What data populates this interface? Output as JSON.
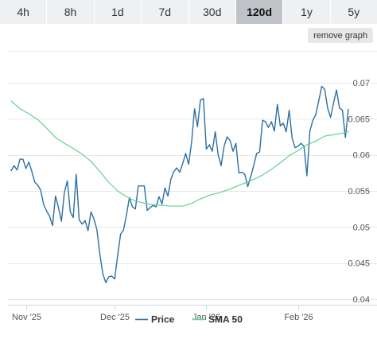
{
  "range_tabs": [
    {
      "label": "4h",
      "active": false
    },
    {
      "label": "8h",
      "active": false
    },
    {
      "label": "1d",
      "active": false
    },
    {
      "label": "7d",
      "active": false
    },
    {
      "label": "30d",
      "active": false
    },
    {
      "label": "120d",
      "active": true
    },
    {
      "label": "1y",
      "active": false
    },
    {
      "label": "5y",
      "active": false
    }
  ],
  "remove_graph_label": "remove graph",
  "colors": {
    "price": "#2d6fa3",
    "sma": "#5fd38d",
    "active_tab": "#bfc3c7",
    "tab": "#eef0f2"
  },
  "chart_data": {
    "type": "line",
    "y_axis_position": "right",
    "ylim": [
      0.0395,
      0.0725
    ],
    "y_ticks": [
      {
        "value": 0.07,
        "label": "0.07"
      },
      {
        "value": 0.065,
        "label": "0.065"
      },
      {
        "value": 0.06,
        "label": "0.06"
      },
      {
        "value": 0.055,
        "label": "0.055"
      },
      {
        "value": 0.05,
        "label": "0.05"
      },
      {
        "value": 0.045,
        "label": "0.045"
      },
      {
        "value": 0.04,
        "label": "0.04"
      }
    ],
    "x_start": "2025-10-27",
    "x_end": "2026-02-25",
    "x_ticks": [
      {
        "date": "2025-11-01",
        "label": "Nov '25"
      },
      {
        "date": "2025-12-01",
        "label": "Dec '25"
      },
      {
        "date": "2026-01-01",
        "label": "Jan '26"
      },
      {
        "date": "2026-02-01",
        "label": "Feb '26"
      }
    ],
    "grid": true,
    "legend_placement": "bottom-center",
    "series": [
      {
        "name": "Price",
        "color": "#2d6fa3",
        "points": [
          [
            "2025-10-27",
            0.0578
          ],
          [
            "2025-10-28",
            0.0585
          ],
          [
            "2025-10-29",
            0.0579
          ],
          [
            "2025-10-30",
            0.0594
          ],
          [
            "2025-10-31",
            0.0594
          ],
          [
            "2025-11-01",
            0.0581
          ],
          [
            "2025-11-02",
            0.059
          ],
          [
            "2025-11-03",
            0.0577
          ],
          [
            "2025-11-04",
            0.0562
          ],
          [
            "2025-11-05",
            0.0558
          ],
          [
            "2025-11-06",
            0.0551
          ],
          [
            "2025-11-07",
            0.0531
          ],
          [
            "2025-11-08",
            0.0522
          ],
          [
            "2025-11-09",
            0.0515
          ],
          [
            "2025-11-10",
            0.0502
          ],
          [
            "2025-11-11",
            0.0543
          ],
          [
            "2025-11-12",
            0.0527
          ],
          [
            "2025-11-13",
            0.0508
          ],
          [
            "2025-11-14",
            0.0548
          ],
          [
            "2025-11-15",
            0.0564
          ],
          [
            "2025-11-16",
            0.0521
          ],
          [
            "2025-11-17",
            0.0513
          ],
          [
            "2025-11-18",
            0.0573
          ],
          [
            "2025-11-19",
            0.051
          ],
          [
            "2025-11-20",
            0.0504
          ],
          [
            "2025-11-21",
            0.0509
          ],
          [
            "2025-11-22",
            0.0495
          ],
          [
            "2025-11-23",
            0.0521
          ],
          [
            "2025-11-24",
            0.0511
          ],
          [
            "2025-11-25",
            0.0496
          ],
          [
            "2025-11-26",
            0.0462
          ],
          [
            "2025-11-27",
            0.0435
          ],
          [
            "2025-11-28",
            0.0423
          ],
          [
            "2025-11-29",
            0.0431
          ],
          [
            "2025-11-30",
            0.0432
          ],
          [
            "2025-12-01",
            0.0428
          ],
          [
            "2025-12-02",
            0.046
          ],
          [
            "2025-12-03",
            0.049
          ],
          [
            "2025-12-04",
            0.0496
          ],
          [
            "2025-12-05",
            0.0517
          ],
          [
            "2025-12-06",
            0.0541
          ],
          [
            "2025-12-07",
            0.0528
          ],
          [
            "2025-12-08",
            0.0525
          ],
          [
            "2025-12-09",
            0.0557
          ],
          [
            "2025-12-10",
            0.0557
          ],
          [
            "2025-12-11",
            0.0557
          ],
          [
            "2025-12-12",
            0.0523
          ],
          [
            "2025-12-13",
            0.0527
          ],
          [
            "2025-12-14",
            0.053
          ],
          [
            "2025-12-15",
            0.0528
          ],
          [
            "2025-12-16",
            0.0542
          ],
          [
            "2025-12-17",
            0.0532
          ],
          [
            "2025-12-18",
            0.0554
          ],
          [
            "2025-12-19",
            0.0543
          ],
          [
            "2025-12-20",
            0.0566
          ],
          [
            "2025-12-21",
            0.0577
          ],
          [
            "2025-12-22",
            0.0582
          ],
          [
            "2025-12-23",
            0.0576
          ],
          [
            "2025-12-24",
            0.0588
          ],
          [
            "2025-12-25",
            0.0602
          ],
          [
            "2025-12-26",
            0.0587
          ],
          [
            "2025-12-27",
            0.0617
          ],
          [
            "2025-12-28",
            0.0664
          ],
          [
            "2025-12-29",
            0.0639
          ],
          [
            "2025-12-30",
            0.0676
          ],
          [
            "2025-12-31",
            0.0678
          ],
          [
            "2026-01-01",
            0.0608
          ],
          [
            "2026-01-02",
            0.0614
          ],
          [
            "2026-01-03",
            0.0605
          ],
          [
            "2026-01-04",
            0.0632
          ],
          [
            "2026-01-05",
            0.06
          ],
          [
            "2026-01-06",
            0.0585
          ],
          [
            "2026-01-07",
            0.0612
          ],
          [
            "2026-01-08",
            0.0625
          ],
          [
            "2026-01-09",
            0.062
          ],
          [
            "2026-01-10",
            0.0605
          ],
          [
            "2026-01-11",
            0.0616
          ],
          [
            "2026-01-12",
            0.0575
          ],
          [
            "2026-01-13",
            0.0576
          ],
          [
            "2026-01-14",
            0.0573
          ],
          [
            "2026-01-15",
            0.0556
          ],
          [
            "2026-01-16",
            0.057
          ],
          [
            "2026-01-17",
            0.0585
          ],
          [
            "2026-01-18",
            0.0602
          ],
          [
            "2026-01-19",
            0.0604
          ],
          [
            "2026-01-20",
            0.0648
          ],
          [
            "2026-01-21",
            0.0646
          ],
          [
            "2026-01-22",
            0.0638
          ],
          [
            "2026-01-23",
            0.0646
          ],
          [
            "2026-01-24",
            0.0633
          ],
          [
            "2026-01-25",
            0.067
          ],
          [
            "2026-01-26",
            0.064
          ],
          [
            "2026-01-27",
            0.0644
          ],
          [
            "2026-01-28",
            0.0632
          ],
          [
            "2026-01-29",
            0.0662
          ],
          [
            "2026-01-30",
            0.0623
          ],
          [
            "2026-01-31",
            0.061
          ],
          [
            "2026-02-01",
            0.0612
          ],
          [
            "2026-02-02",
            0.0616
          ],
          [
            "2026-02-03",
            0.0612
          ],
          [
            "2026-02-04",
            0.0571
          ],
          [
            "2026-02-05",
            0.0633
          ],
          [
            "2026-02-06",
            0.0648
          ],
          [
            "2026-02-07",
            0.0656
          ],
          [
            "2026-02-08",
            0.0675
          ],
          [
            "2026-02-09",
            0.0695
          ],
          [
            "2026-02-10",
            0.0691
          ],
          [
            "2026-02-11",
            0.0665
          ],
          [
            "2026-02-12",
            0.0652
          ],
          [
            "2026-02-13",
            0.0672
          ],
          [
            "2026-02-14",
            0.069
          ],
          [
            "2026-02-15",
            0.0665
          ],
          [
            "2026-02-16",
            0.0662
          ],
          [
            "2026-02-17",
            0.0624
          ],
          [
            "2026-02-18",
            0.0663
          ]
        ]
      },
      {
        "name": "SMA 50",
        "color": "#5fd38d",
        "points": [
          [
            "2025-10-27",
            0.0675
          ],
          [
            "2025-10-30",
            0.0664
          ],
          [
            "2025-11-02",
            0.0657
          ],
          [
            "2025-11-05",
            0.0649
          ],
          [
            "2025-11-08",
            0.0637
          ],
          [
            "2025-11-11",
            0.0624
          ],
          [
            "2025-11-14",
            0.0616
          ],
          [
            "2025-11-17",
            0.0609
          ],
          [
            "2025-11-20",
            0.0601
          ],
          [
            "2025-11-23",
            0.0591
          ],
          [
            "2025-11-26",
            0.0577
          ],
          [
            "2025-11-29",
            0.0562
          ],
          [
            "2025-12-02",
            0.055
          ],
          [
            "2025-12-05",
            0.0542
          ],
          [
            "2025-12-08",
            0.0536
          ],
          [
            "2025-12-11",
            0.0533
          ],
          [
            "2025-12-14",
            0.0531
          ],
          [
            "2025-12-17",
            0.053
          ],
          [
            "2025-12-20",
            0.0529
          ],
          [
            "2025-12-24",
            0.0529
          ],
          [
            "2025-12-27",
            0.0533
          ],
          [
            "2025-12-30",
            0.0539
          ],
          [
            "2026-01-02",
            0.0544
          ],
          [
            "2026-01-05",
            0.0547
          ],
          [
            "2026-01-08",
            0.0551
          ],
          [
            "2026-01-11",
            0.0556
          ],
          [
            "2026-01-14",
            0.0561
          ],
          [
            "2026-01-17",
            0.0566
          ],
          [
            "2026-01-20",
            0.0572
          ],
          [
            "2026-01-23",
            0.058
          ],
          [
            "2026-01-26",
            0.0589
          ],
          [
            "2026-01-29",
            0.0599
          ],
          [
            "2026-02-01",
            0.0606
          ],
          [
            "2026-02-04",
            0.0614
          ],
          [
            "2026-02-07",
            0.0619
          ],
          [
            "2026-02-10",
            0.0626
          ],
          [
            "2026-02-13",
            0.0628
          ],
          [
            "2026-02-16",
            0.063
          ],
          [
            "2026-02-18",
            0.0632
          ]
        ]
      }
    ]
  }
}
